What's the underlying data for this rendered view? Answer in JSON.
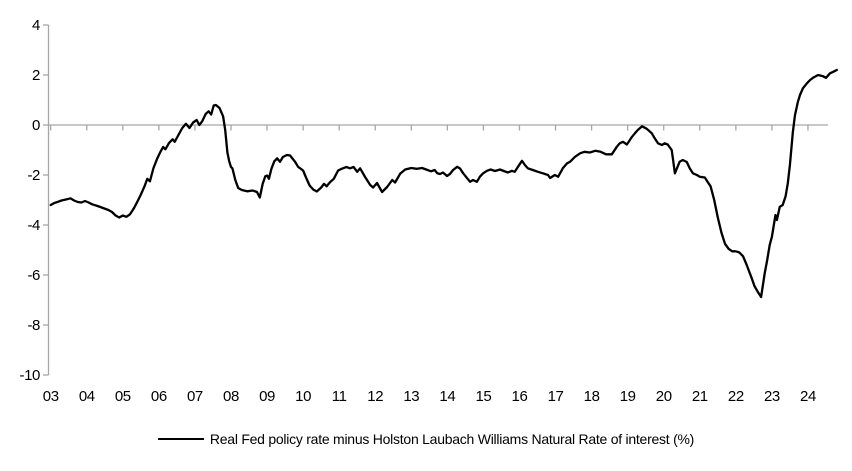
{
  "chart_data": {
    "type": "line",
    "title": "",
    "legend_position": "bottom-center",
    "grid": {
      "zero_line": true
    },
    "colors": {
      "line": "#000000",
      "axis": "#a6a6a6",
      "label": "#000000"
    },
    "x_axis": {
      "tick_labels": [
        "03",
        "04",
        "05",
        "06",
        "07",
        "08",
        "09",
        "10",
        "11",
        "12",
        "13",
        "14",
        "15",
        "16",
        "17",
        "18",
        "19",
        "20",
        "21",
        "22",
        "23",
        "24"
      ]
    },
    "y_axis": {
      "tick_labels": [
        "4",
        "2",
        "0",
        "-2",
        "-4",
        "-6",
        "-8",
        "-10"
      ],
      "range": [
        -10,
        4
      ]
    },
    "series": [
      {
        "name": "Real Fed policy rate minus Holston Laubach Williams Natural Rate of interest (%)",
        "color": "#000000",
        "points": [
          [
            2003.0,
            -3.2
          ],
          [
            2003.1,
            -3.12
          ],
          [
            2003.2,
            -3.07
          ],
          [
            2003.3,
            -3.02
          ],
          [
            2003.45,
            -2.97
          ],
          [
            2003.55,
            -2.93
          ],
          [
            2003.65,
            -3.02
          ],
          [
            2003.75,
            -3.08
          ],
          [
            2003.85,
            -3.1
          ],
          [
            2003.95,
            -3.04
          ],
          [
            2004.05,
            -3.1
          ],
          [
            2004.15,
            -3.17
          ],
          [
            2004.3,
            -3.24
          ],
          [
            2004.45,
            -3.32
          ],
          [
            2004.6,
            -3.4
          ],
          [
            2004.7,
            -3.48
          ],
          [
            2004.8,
            -3.62
          ],
          [
            2004.9,
            -3.7
          ],
          [
            2005.0,
            -3.62
          ],
          [
            2005.1,
            -3.67
          ],
          [
            2005.2,
            -3.57
          ],
          [
            2005.3,
            -3.35
          ],
          [
            2005.4,
            -3.08
          ],
          [
            2005.5,
            -2.78
          ],
          [
            2005.6,
            -2.45
          ],
          [
            2005.68,
            -2.15
          ],
          [
            2005.75,
            -2.25
          ],
          [
            2005.85,
            -1.72
          ],
          [
            2005.95,
            -1.35
          ],
          [
            2006.05,
            -1.05
          ],
          [
            2006.12,
            -0.88
          ],
          [
            2006.18,
            -0.97
          ],
          [
            2006.28,
            -0.72
          ],
          [
            2006.38,
            -0.57
          ],
          [
            2006.44,
            -0.67
          ],
          [
            2006.55,
            -0.38
          ],
          [
            2006.65,
            -0.12
          ],
          [
            2006.75,
            0.05
          ],
          [
            2006.85,
            -0.12
          ],
          [
            2006.95,
            0.1
          ],
          [
            2007.05,
            0.2
          ],
          [
            2007.12,
            0.0
          ],
          [
            2007.2,
            0.15
          ],
          [
            2007.3,
            0.45
          ],
          [
            2007.38,
            0.55
          ],
          [
            2007.45,
            0.42
          ],
          [
            2007.52,
            0.78
          ],
          [
            2007.58,
            0.8
          ],
          [
            2007.68,
            0.68
          ],
          [
            2007.78,
            0.35
          ],
          [
            2007.84,
            -0.2
          ],
          [
            2007.9,
            -1.1
          ],
          [
            2007.95,
            -1.45
          ],
          [
            2008.0,
            -1.68
          ],
          [
            2008.04,
            -1.73
          ],
          [
            2008.12,
            -2.2
          ],
          [
            2008.2,
            -2.52
          ],
          [
            2008.3,
            -2.6
          ],
          [
            2008.45,
            -2.65
          ],
          [
            2008.6,
            -2.62
          ],
          [
            2008.72,
            -2.68
          ],
          [
            2008.8,
            -2.9
          ],
          [
            2008.88,
            -2.35
          ],
          [
            2008.95,
            -2.05
          ],
          [
            2009.0,
            -2.02
          ],
          [
            2009.05,
            -2.15
          ],
          [
            2009.12,
            -1.75
          ],
          [
            2009.2,
            -1.45
          ],
          [
            2009.28,
            -1.33
          ],
          [
            2009.36,
            -1.47
          ],
          [
            2009.44,
            -1.28
          ],
          [
            2009.55,
            -1.2
          ],
          [
            2009.64,
            -1.22
          ],
          [
            2009.78,
            -1.48
          ],
          [
            2009.86,
            -1.67
          ],
          [
            2010.0,
            -1.82
          ],
          [
            2010.08,
            -2.1
          ],
          [
            2010.18,
            -2.42
          ],
          [
            2010.28,
            -2.58
          ],
          [
            2010.38,
            -2.66
          ],
          [
            2010.5,
            -2.5
          ],
          [
            2010.58,
            -2.35
          ],
          [
            2010.65,
            -2.45
          ],
          [
            2010.75,
            -2.28
          ],
          [
            2010.85,
            -2.15
          ],
          [
            2010.97,
            -1.82
          ],
          [
            2011.1,
            -1.73
          ],
          [
            2011.2,
            -1.68
          ],
          [
            2011.3,
            -1.73
          ],
          [
            2011.4,
            -1.68
          ],
          [
            2011.5,
            -1.87
          ],
          [
            2011.58,
            -1.73
          ],
          [
            2011.72,
            -2.08
          ],
          [
            2011.86,
            -2.4
          ],
          [
            2011.94,
            -2.5
          ],
          [
            2012.05,
            -2.32
          ],
          [
            2012.19,
            -2.68
          ],
          [
            2012.33,
            -2.48
          ],
          [
            2012.47,
            -2.2
          ],
          [
            2012.55,
            -2.3
          ],
          [
            2012.69,
            -1.95
          ],
          [
            2012.83,
            -1.78
          ],
          [
            2013.0,
            -1.72
          ],
          [
            2013.15,
            -1.75
          ],
          [
            2013.3,
            -1.72
          ],
          [
            2013.45,
            -1.8
          ],
          [
            2013.55,
            -1.85
          ],
          [
            2013.65,
            -1.8
          ],
          [
            2013.72,
            -1.93
          ],
          [
            2013.8,
            -1.96
          ],
          [
            2013.88,
            -1.9
          ],
          [
            2013.99,
            -2.04
          ],
          [
            2014.07,
            -1.96
          ],
          [
            2014.16,
            -1.8
          ],
          [
            2014.27,
            -1.67
          ],
          [
            2014.35,
            -1.74
          ],
          [
            2014.44,
            -1.93
          ],
          [
            2014.55,
            -2.13
          ],
          [
            2014.63,
            -2.27
          ],
          [
            2014.71,
            -2.2
          ],
          [
            2014.82,
            -2.27
          ],
          [
            2014.9,
            -2.07
          ],
          [
            2014.99,
            -1.93
          ],
          [
            2015.1,
            -1.83
          ],
          [
            2015.2,
            -1.78
          ],
          [
            2015.32,
            -1.84
          ],
          [
            2015.46,
            -1.78
          ],
          [
            2015.6,
            -1.86
          ],
          [
            2015.68,
            -1.9
          ],
          [
            2015.79,
            -1.83
          ],
          [
            2015.87,
            -1.87
          ],
          [
            2015.96,
            -1.67
          ],
          [
            2016.07,
            -1.43
          ],
          [
            2016.15,
            -1.6
          ],
          [
            2016.23,
            -1.73
          ],
          [
            2016.37,
            -1.8
          ],
          [
            2016.51,
            -1.87
          ],
          [
            2016.65,
            -1.93
          ],
          [
            2016.79,
            -2.0
          ],
          [
            2016.85,
            -2.12
          ],
          [
            2016.98,
            -2.0
          ],
          [
            2017.07,
            -2.07
          ],
          [
            2017.2,
            -1.73
          ],
          [
            2017.32,
            -1.53
          ],
          [
            2017.4,
            -1.47
          ],
          [
            2017.54,
            -1.27
          ],
          [
            2017.68,
            -1.13
          ],
          [
            2017.8,
            -1.07
          ],
          [
            2017.95,
            -1.1
          ],
          [
            2018.1,
            -1.03
          ],
          [
            2018.25,
            -1.07
          ],
          [
            2018.4,
            -1.17
          ],
          [
            2018.56,
            -1.17
          ],
          [
            2018.7,
            -0.87
          ],
          [
            2018.78,
            -0.73
          ],
          [
            2018.87,
            -0.67
          ],
          [
            2018.98,
            -0.78
          ],
          [
            2019.12,
            -0.47
          ],
          [
            2019.2,
            -0.33
          ],
          [
            2019.28,
            -0.2
          ],
          [
            2019.4,
            -0.05
          ],
          [
            2019.53,
            -0.15
          ],
          [
            2019.67,
            -0.33
          ],
          [
            2019.75,
            -0.53
          ],
          [
            2019.84,
            -0.73
          ],
          [
            2019.95,
            -0.8
          ],
          [
            2020.03,
            -0.73
          ],
          [
            2020.11,
            -0.78
          ],
          [
            2020.22,
            -1.0
          ],
          [
            2020.26,
            -1.4
          ],
          [
            2020.31,
            -1.93
          ],
          [
            2020.44,
            -1.47
          ],
          [
            2020.53,
            -1.4
          ],
          [
            2020.64,
            -1.48
          ],
          [
            2020.72,
            -1.73
          ],
          [
            2020.81,
            -1.93
          ],
          [
            2020.92,
            -2.0
          ],
          [
            2021.0,
            -2.07
          ],
          [
            2021.14,
            -2.1
          ],
          [
            2021.22,
            -2.28
          ],
          [
            2021.3,
            -2.45
          ],
          [
            2021.4,
            -3.0
          ],
          [
            2021.5,
            -3.7
          ],
          [
            2021.6,
            -4.3
          ],
          [
            2021.7,
            -4.75
          ],
          [
            2021.8,
            -4.95
          ],
          [
            2021.9,
            -5.05
          ],
          [
            2022.0,
            -5.05
          ],
          [
            2022.1,
            -5.1
          ],
          [
            2022.2,
            -5.25
          ],
          [
            2022.3,
            -5.6
          ],
          [
            2022.42,
            -6.05
          ],
          [
            2022.52,
            -6.45
          ],
          [
            2022.62,
            -6.7
          ],
          [
            2022.7,
            -6.88
          ],
          [
            2022.8,
            -5.93
          ],
          [
            2022.87,
            -5.4
          ],
          [
            2022.94,
            -4.8
          ],
          [
            2023.0,
            -4.47
          ],
          [
            2023.06,
            -3.93
          ],
          [
            2023.1,
            -3.6
          ],
          [
            2023.14,
            -3.8
          ],
          [
            2023.22,
            -3.27
          ],
          [
            2023.3,
            -3.2
          ],
          [
            2023.38,
            -2.85
          ],
          [
            2023.44,
            -2.33
          ],
          [
            2023.5,
            -1.6
          ],
          [
            2023.55,
            -0.8
          ],
          [
            2023.58,
            -0.3
          ],
          [
            2023.64,
            0.4
          ],
          [
            2023.72,
            0.93
          ],
          [
            2023.78,
            1.2
          ],
          [
            2023.86,
            1.47
          ],
          [
            2023.97,
            1.67
          ],
          [
            2024.06,
            1.8
          ],
          [
            2024.14,
            1.89
          ],
          [
            2024.28,
            2.0
          ],
          [
            2024.42,
            1.95
          ],
          [
            2024.5,
            1.89
          ],
          [
            2024.61,
            2.07
          ],
          [
            2024.7,
            2.13
          ],
          [
            2024.8,
            2.2
          ]
        ]
      }
    ]
  }
}
